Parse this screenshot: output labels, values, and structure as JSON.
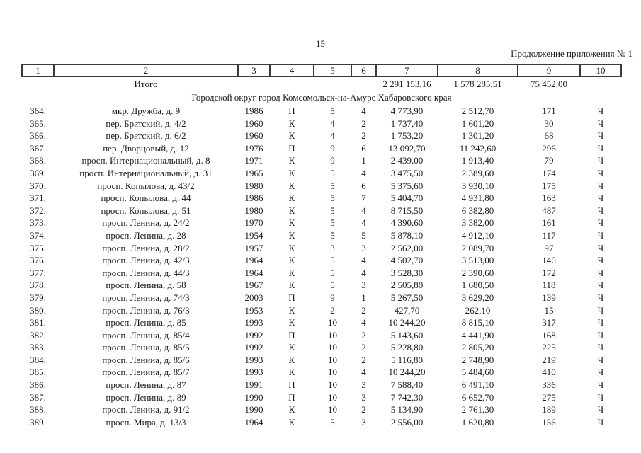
{
  "page": {
    "number": "15",
    "continuation_note": "Продолжение приложения № 1"
  },
  "table": {
    "column_numbers": [
      "1",
      "2",
      "3",
      "4",
      "5",
      "6",
      "7",
      "8",
      "9",
      "10"
    ],
    "totals": {
      "label": "Итого",
      "total_area_sum": "2 291 153,16",
      "living_area_sum": "1 578 285,51",
      "residents_sum": "75 452,00"
    },
    "section_title": "Городской округ город Комсомольск-на-Амуре Хабаровского края",
    "rows": [
      [
        "364.",
        "мкр. Дружба, д. 9",
        "1986",
        "П",
        "5",
        "4",
        "4 773,90",
        "2 512,70",
        "171",
        "Ч"
      ],
      [
        "365.",
        "пер. Братский, д. 4/2",
        "1960",
        "К",
        "4",
        "2",
        "1 737,40",
        "1 601,20",
        "30",
        "Ч"
      ],
      [
        "366.",
        "пер. Братский, д. 6/2",
        "1960",
        "К",
        "4",
        "2",
        "1 753,20",
        "1 301,20",
        "68",
        "Ч"
      ],
      [
        "367.",
        "пер. Дворцовый, д. 12",
        "1976",
        "П",
        "9",
        "6",
        "13 092,70",
        "11 242,60",
        "296",
        "Ч"
      ],
      [
        "368.",
        "просп. Интернациональный, д. 8",
        "1971",
        "К",
        "9",
        "1",
        "2 439,00",
        "1 913,40",
        "79",
        "Ч"
      ],
      [
        "369.",
        "просп. Интернациональный, д. 31",
        "1965",
        "К",
        "5",
        "4",
        "3 475,50",
        "2 389,60",
        "174",
        "Ч"
      ],
      [
        "370.",
        "просп. Копылова, д. 43/2",
        "1980",
        "К",
        "5",
        "6",
        "5 375,60",
        "3 930,10",
        "175",
        "Ч"
      ],
      [
        "371.",
        "просп. Копылова, д. 44",
        "1986",
        "К",
        "5",
        "7",
        "5 404,70",
        "4 931,80",
        "163",
        "Ч"
      ],
      [
        "372.",
        "просп. Копылова, д. 51",
        "1980",
        "К",
        "5",
        "4",
        "8 715,50",
        "6 382,80",
        "487",
        "Ч"
      ],
      [
        "373.",
        "просп. Ленина, д. 24/2",
        "1970",
        "К",
        "5",
        "4",
        "4 390,60",
        "3 382,00",
        "161",
        "Ч"
      ],
      [
        "374.",
        "просп. Ленина, д. 28",
        "1954",
        "К",
        "5",
        "5",
        "5 878,10",
        "4 912,10",
        "117",
        "Ч"
      ],
      [
        "375.",
        "просп. Ленина, д. 28/2",
        "1957",
        "К",
        "3",
        "3",
        "2 562,00",
        "2 089,70",
        "97",
        "Ч"
      ],
      [
        "376.",
        "просп. Ленина, д. 42/3",
        "1964",
        "К",
        "5",
        "4",
        "4 502,70",
        "3 513,00",
        "146",
        "Ч"
      ],
      [
        "377.",
        "просп. Ленина, д. 44/3",
        "1964",
        "К",
        "5",
        "4",
        "3 528,30",
        "2 390,60",
        "172",
        "Ч"
      ],
      [
        "378.",
        "просп. Ленина, д. 58",
        "1967",
        "К",
        "5",
        "3",
        "2 505,80",
        "1 680,50",
        "118",
        "Ч"
      ],
      [
        "379.",
        "просп. Ленина, д. 74/3",
        "2003",
        "П",
        "9",
        "1",
        "5 267,50",
        "3 629,20",
        "139",
        "Ч"
      ],
      [
        "380.",
        "просп. Ленина, д. 76/3",
        "1953",
        "К",
        "2",
        "2",
        "427,70",
        "262,10",
        "15",
        "Ч"
      ],
      [
        "381.",
        "просп. Ленина, д. 85",
        "1993",
        "К",
        "10",
        "4",
        "10 244,20",
        "8 815,10",
        "317",
        "Ч"
      ],
      [
        "382.",
        "просп. Ленина, д. 85/4",
        "1992",
        "П",
        "10",
        "2",
        "5 143,60",
        "4 441,90",
        "168",
        "Ч"
      ],
      [
        "383.",
        "просп. Ленина, д. 85/5",
        "1992",
        "К",
        "10",
        "2",
        "5 228,80",
        "2 805,20",
        "225",
        "Ч"
      ],
      [
        "384.",
        "просп. Ленина, д. 85/6",
        "1993",
        "К",
        "10",
        "2",
        "5 116,80",
        "2 748,90",
        "219",
        "Ч"
      ],
      [
        "385.",
        "просп. Ленина, д. 85/7",
        "1993",
        "К",
        "10",
        "4",
        "10 244,20",
        "5 484,60",
        "410",
        "Ч"
      ],
      [
        "386.",
        "просп. Ленина, д. 87",
        "1991",
        "П",
        "10",
        "3",
        "7 588,40",
        "6 491,10",
        "336",
        "Ч"
      ],
      [
        "387.",
        "просп. Ленина, д. 89",
        "1990",
        "П",
        "10",
        "3",
        "7 742,30",
        "6 652,70",
        "275",
        "Ч"
      ],
      [
        "388.",
        "просп. Ленина, д. 91/2",
        "1990",
        "К",
        "10",
        "2",
        "5 134,90",
        "2 761,30",
        "189",
        "Ч"
      ],
      [
        "389.",
        "просп. Мира, д. 13/3",
        "1964",
        "К",
        "5",
        "3",
        "2 556,00",
        "1 620,80",
        "156",
        "Ч"
      ]
    ]
  }
}
